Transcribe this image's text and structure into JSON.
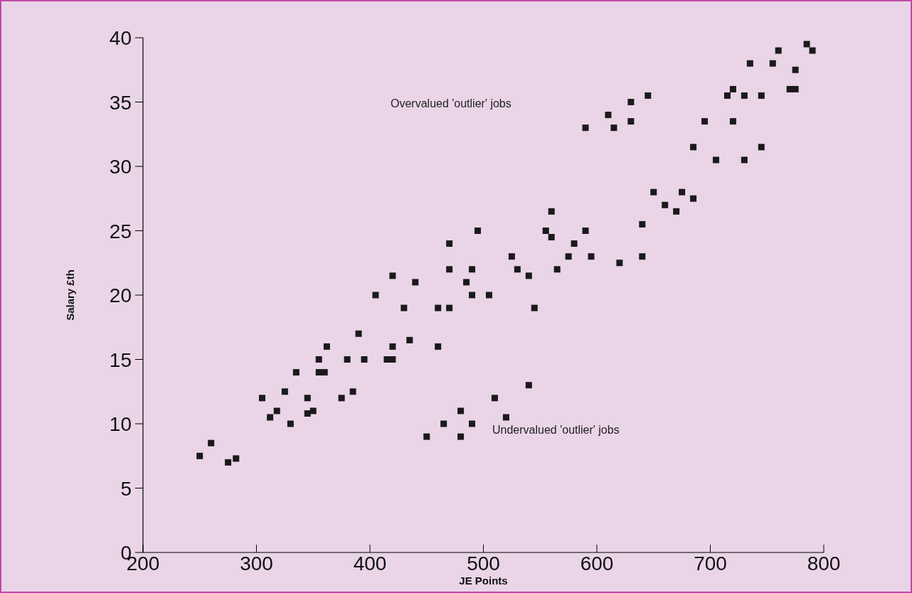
{
  "chart_data": {
    "type": "scatter",
    "xlabel": "JE Points",
    "ylabel": "Salary £th",
    "xlim": [
      200,
      800
    ],
    "ylim": [
      0,
      40
    ],
    "xticks": [
      200,
      300,
      400,
      500,
      600,
      700,
      800
    ],
    "yticks": [
      0,
      5,
      10,
      15,
      20,
      25,
      30,
      35,
      40
    ],
    "marker": "square",
    "grid": false,
    "annotations": [
      "Overvalued 'outlier' jobs",
      "Undervalued 'outlier' jobs"
    ],
    "series": [
      {
        "color": "#1a1a1a",
        "x": [
          250,
          260,
          275,
          282,
          305,
          312,
          318,
          325,
          330,
          335,
          345,
          345,
          350,
          355,
          355,
          360,
          362,
          375,
          380,
          385,
          390,
          395,
          405,
          415,
          420,
          420,
          420,
          430,
          435,
          440,
          450,
          460,
          460,
          465,
          470,
          470,
          470,
          480,
          480,
          485,
          490,
          490,
          490,
          495,
          505,
          510,
          520,
          525,
          530,
          540,
          540,
          545,
          555,
          560,
          560,
          565,
          575,
          580,
          590,
          590,
          595,
          610,
          615,
          620,
          630,
          630,
          640,
          640,
          645,
          650,
          660,
          670,
          675,
          685,
          685,
          695,
          705,
          715,
          720,
          720,
          730,
          730,
          735,
          745,
          745,
          755,
          760,
          770,
          775,
          775,
          785,
          790
        ],
        "values": [
          7.5,
          8.5,
          7,
          7.3,
          12,
          10.5,
          11,
          12.5,
          10,
          14,
          12,
          10.8,
          11,
          15,
          14,
          14,
          16,
          12,
          15,
          12.5,
          17,
          15,
          20,
          15,
          15,
          16,
          21.5,
          19,
          16.5,
          21,
          9,
          19,
          16,
          10,
          24,
          22,
          19,
          9,
          11,
          21,
          20,
          22,
          10,
          25,
          20,
          12,
          10.5,
          23,
          22,
          21.5,
          13,
          19,
          25,
          26.5,
          24.5,
          22,
          23,
          24,
          25,
          33,
          23,
          34,
          33,
          22.5,
          35,
          33.5,
          25.5,
          23,
          35.5,
          28,
          27,
          26.5,
          28,
          27.5,
          31.5,
          33.5,
          30.5,
          35.5,
          36,
          33.5,
          35.5,
          30.5,
          38,
          35.5,
          31.5,
          38,
          39,
          36,
          36,
          37.5,
          39.5,
          39
        ]
      }
    ]
  }
}
